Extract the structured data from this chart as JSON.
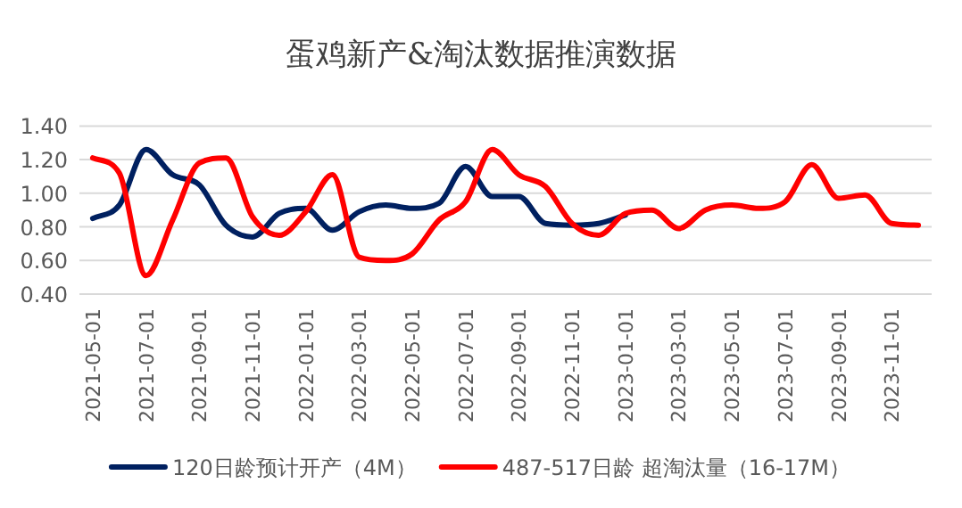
{
  "chart_data": {
    "type": "line",
    "title": "蛋鸡新产&淘汰数据推演数据",
    "categories": [
      "2021-05-01",
      null,
      "2021-07-01",
      null,
      "2021-09-01",
      null,
      "2021-11-01",
      null,
      "2022-01-01",
      null,
      "2022-03-01",
      null,
      "2022-05-01",
      null,
      "2022-07-01",
      null,
      "2022-09-01",
      null,
      "2022-11-01",
      null,
      "2023-01-01",
      null,
      "2023-03-01",
      null,
      "2023-05-01",
      null,
      "2023-07-01",
      null,
      "2023-09-01",
      null,
      "2023-11-01",
      null
    ],
    "series": [
      {
        "name": "120日龄预计开产（4M）",
        "color": "#002060",
        "values": [
          0.85,
          0.93,
          1.26,
          1.11,
          1.05,
          0.81,
          0.74,
          0.88,
          0.91,
          0.78,
          0.89,
          0.93,
          0.91,
          0.94,
          1.16,
          0.98,
          0.98,
          0.82,
          0.81,
          0.82,
          0.87,
          null,
          null,
          null,
          null,
          null,
          null,
          null,
          null,
          null,
          null,
          null
        ]
      },
      {
        "name": "487-517日龄 超淘汰量（16-17M）",
        "color": "#ff0000",
        "values": [
          1.21,
          1.12,
          0.51,
          0.84,
          1.18,
          1.21,
          0.86,
          0.75,
          0.89,
          1.11,
          0.62,
          0.6,
          0.64,
          0.84,
          0.95,
          1.26,
          1.11,
          1.04,
          0.82,
          0.75,
          0.88,
          0.9,
          0.79,
          0.9,
          0.93,
          0.91,
          0.95,
          1.17,
          0.97,
          0.99,
          0.82,
          0.81
        ]
      }
    ],
    "ylim": [
      0.4,
      1.4
    ],
    "yticks": [
      {
        "value": 0.4,
        "label": "0.40"
      },
      {
        "value": 0.6,
        "label": "0.60"
      },
      {
        "value": 0.8,
        "label": "0.80"
      },
      {
        "value": 1.0,
        "label": "1.00"
      },
      {
        "value": 1.2,
        "label": "1.20"
      },
      {
        "value": 1.4,
        "label": "1.40"
      }
    ],
    "grid": "y",
    "legend": "bottom"
  }
}
